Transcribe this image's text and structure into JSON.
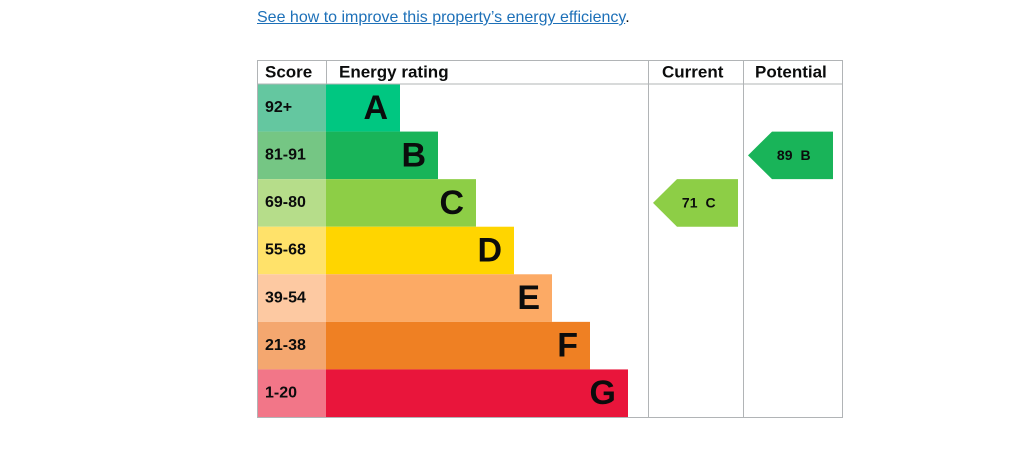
{
  "link": {
    "text": "See how to improve this property’s energy efficiency",
    "suffix": "."
  },
  "table": {
    "headers": [
      "Score",
      "Energy rating",
      "Current",
      "Potential"
    ],
    "bands": [
      {
        "score": "92+",
        "letter": "A",
        "color": "#00c781",
        "score_color": "#64c7a0"
      },
      {
        "score": "81-91",
        "letter": "B",
        "color": "#19b459",
        "score_color": "#75c684"
      },
      {
        "score": "69-80",
        "letter": "C",
        "color": "#8dce46",
        "score_color": "#b6dd8a"
      },
      {
        "score": "55-68",
        "letter": "D",
        "color": "#ffd500",
        "score_color": "#ffe26a"
      },
      {
        "score": "39-54",
        "letter": "E",
        "color": "#fcaa65",
        "score_color": "#fdc9a2"
      },
      {
        "score": "21-38",
        "letter": "F",
        "color": "#ef8023",
        "score_color": "#f4a76f"
      },
      {
        "score": "1-20",
        "letter": "G",
        "color": "#e9153b",
        "score_color": "#f27688"
      }
    ],
    "current": {
      "value": 71,
      "letter": "C"
    },
    "potential": {
      "value": 89,
      "letter": "B"
    }
  }
}
